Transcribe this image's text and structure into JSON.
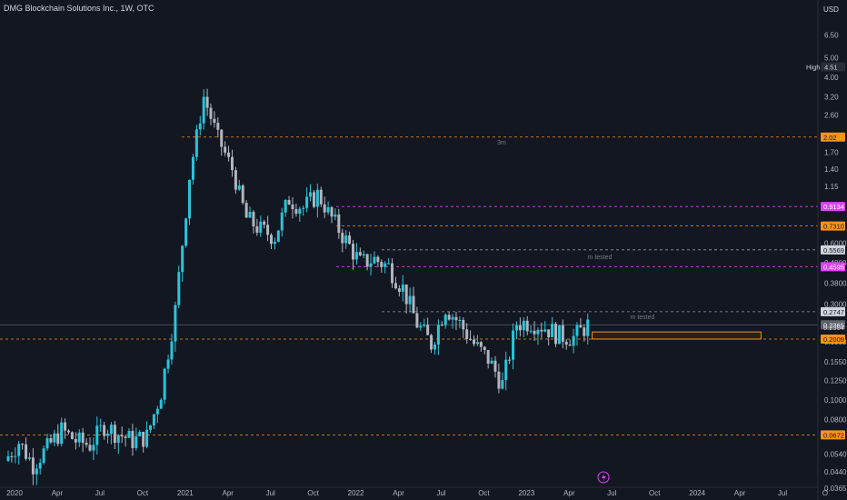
{
  "header": {
    "title": "DMG Blockchain Solutions Inc., 1W, OTC",
    "currency": "USD"
  },
  "colors": {
    "background": "#131722",
    "up_candle": "#26c6da",
    "down_candle": "#b2b5be",
    "orange": "#f7931a",
    "magenta": "#e040fb",
    "gray_line": "#9598a1"
  },
  "chart_data": {
    "type": "candlestick",
    "scale": "log",
    "interval": "1W",
    "x_axis": {
      "ticks": [
        "2020",
        "Apr",
        "Jul",
        "Oct",
        "2021",
        "Apr",
        "Jul",
        "Oct",
        "2022",
        "Apr",
        "Jul",
        "Oct",
        "2023",
        "Apr",
        "Jul",
        "Oct",
        "2024",
        "Apr",
        "Jul",
        "O"
      ],
      "range": [
        "2020-01",
        "2024-10"
      ]
    },
    "y_axis": {
      "ticks": [
        6.5,
        5.0,
        4.0,
        3.2,
        2.6,
        1.7,
        1.4,
        1.15,
        0.6,
        0.48,
        0.38,
        0.3,
        0.195,
        0.155,
        0.125,
        0.1,
        0.08,
        0.054,
        0.044,
        0.0365
      ],
      "tick_labels": [
        "6.50",
        "5.00",
        "4.00",
        "3.20",
        "2.60",
        "1.70",
        "1.40",
        "1.15",
        "0.6000",
        "0.4800",
        "0.3800",
        "0.3000",
        "0.1950",
        "0.1550",
        "0.1250",
        "0.1000",
        "0.0800",
        "0.0540",
        "0.0440",
        "0.0365"
      ],
      "range": [
        0.034,
        8.9
      ]
    },
    "high_marker": {
      "label": "High",
      "value": "4.51"
    },
    "levels": [
      {
        "value": 2.02,
        "label": "2.02",
        "style": "orange",
        "note": "3m"
      },
      {
        "value": 0.9134,
        "label": "0.9134",
        "style": "magenta",
        "note": ""
      },
      {
        "value": 0.731,
        "label": "0.7310",
        "style": "orange",
        "note": ""
      },
      {
        "value": 0.5569,
        "label": "0.5569",
        "style": "gray",
        "note": "m tested"
      },
      {
        "value": 0.4595,
        "label": "0.4595",
        "style": "magenta",
        "note": ""
      },
      {
        "value": 0.2747,
        "label": "0.2747",
        "style": "gray",
        "note": "m tested"
      },
      {
        "value": 0.2365,
        "label": "0.2365",
        "style": "current",
        "note": ""
      },
      {
        "value": 0.2304,
        "label": "0.2304",
        "style": "plain",
        "note": ""
      },
      {
        "value": 0.2009,
        "label": "0.2009",
        "style": "orange",
        "note": ""
      },
      {
        "value": 0.0672,
        "label": "0.0672",
        "style": "orange",
        "note": ""
      }
    ],
    "zone": {
      "low": 0.2009,
      "high": 0.218,
      "from": "2023-06",
      "to": "2024-06"
    },
    "price_path": [
      [
        "2020-01",
        0.05
      ],
      [
        "2020-02",
        0.062
      ],
      [
        "2020-03",
        0.048
      ],
      [
        "2020-04",
        0.058
      ],
      [
        "2020-05",
        0.071
      ],
      [
        "2020-06",
        0.063
      ],
      [
        "2020-07",
        0.06
      ],
      [
        "2020-08",
        0.075
      ],
      [
        "2020-09",
        0.068
      ],
      [
        "2020-10",
        0.063
      ],
      [
        "2020-11",
        0.066
      ],
      [
        "2020-12",
        0.11
      ],
      [
        "2021-01",
        0.28
      ],
      [
        "2021-02",
        1.3
      ],
      [
        "2021-03",
        3.2
      ],
      [
        "2021-04",
        2.0
      ],
      [
        "2021-05",
        1.4
      ],
      [
        "2021-06",
        0.8
      ],
      [
        "2021-07",
        0.7
      ],
      [
        "2021-08",
        0.65
      ],
      [
        "2021-09",
        1.0
      ],
      [
        "2021-10",
        0.9
      ],
      [
        "2021-11",
        1.05
      ],
      [
        "2021-12",
        0.8
      ],
      [
        "2022-01",
        0.62
      ],
      [
        "2022-02",
        0.48
      ],
      [
        "2022-03",
        0.5
      ],
      [
        "2022-04",
        0.46
      ],
      [
        "2022-05",
        0.36
      ],
      [
        "2022-06",
        0.24
      ],
      [
        "2022-07",
        0.19
      ],
      [
        "2022-08",
        0.29
      ],
      [
        "2022-09",
        0.24
      ],
      [
        "2022-10",
        0.19
      ],
      [
        "2022-11",
        0.16
      ],
      [
        "2022-12",
        0.12
      ],
      [
        "2023-01",
        0.24
      ],
      [
        "2023-02",
        0.245
      ],
      [
        "2023-03",
        0.23
      ],
      [
        "2023-04",
        0.21
      ],
      [
        "2023-05",
        0.205
      ],
      [
        "2023-06",
        0.2365
      ]
    ]
  }
}
